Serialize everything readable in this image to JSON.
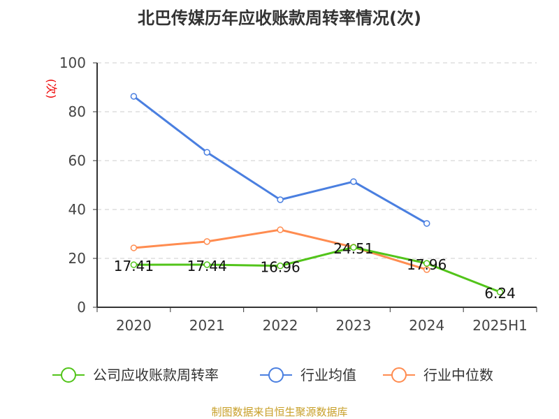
{
  "chart_data": {
    "type": "line",
    "title": "北巴传媒历年应收账款周转率情况(次)",
    "ylabel": "(次)",
    "categories": [
      "2020",
      "2021",
      "2022",
      "2023",
      "2024",
      "2025H1"
    ],
    "ylim": [
      0,
      100
    ],
    "yticks": [
      0,
      20,
      40,
      60,
      80,
      100
    ],
    "grid": true,
    "legend_position": "bottom",
    "series": [
      {
        "name": "公司应收账款周转率",
        "color": "#52c41a",
        "values": [
          17.41,
          17.44,
          16.96,
          24.51,
          17.96,
          6.24
        ],
        "labels": [
          "17.41",
          "17.44",
          "16.96",
          "24.51",
          "17.96",
          "6.24"
        ]
      },
      {
        "name": "行业均值",
        "color": "#4a7fe0",
        "values": [
          86.3,
          63.4,
          44.0,
          51.4,
          34.3,
          null
        ]
      },
      {
        "name": "行业中位数",
        "color": "#ff8c50",
        "values": [
          24.3,
          26.9,
          31.7,
          24.6,
          15.4,
          null
        ]
      }
    ]
  },
  "source": "制图数据来自恒生聚源数据库"
}
